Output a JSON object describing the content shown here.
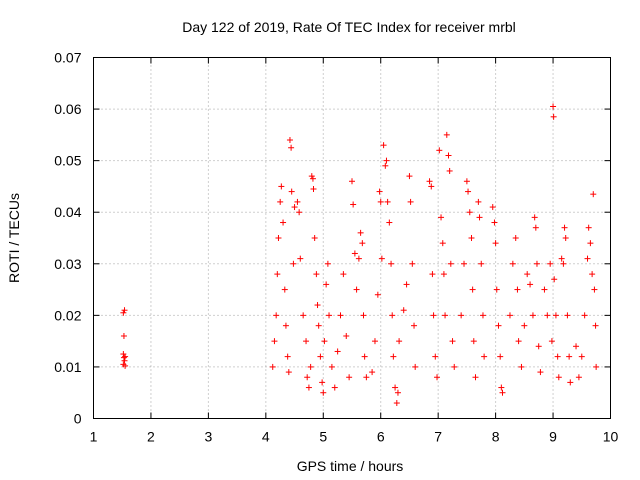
{
  "chart_data": {
    "type": "scatter",
    "title": "Day 122 of 2019, Rate Of TEC Index for receiver mrbl",
    "xlabel": "GPS time / hours",
    "ylabel": "ROTI / TECUs",
    "xlim": [
      1,
      10
    ],
    "ylim": [
      0,
      0.07
    ],
    "xticks": [
      1,
      2,
      3,
      4,
      5,
      6,
      7,
      8,
      9,
      10
    ],
    "xtick_labels": [
      "1",
      "2",
      "3",
      "4",
      "5",
      "6",
      "7",
      "8",
      "9",
      "10"
    ],
    "yticks": [
      0,
      0.01,
      0.02,
      0.03,
      0.04,
      0.05,
      0.06,
      0.07
    ],
    "ytick_labels": [
      "0",
      "0.01",
      "0.02",
      "0.03",
      "0.04",
      "0.05",
      "0.06",
      "0.07"
    ],
    "grid": true,
    "marker": "+",
    "color": "#ff0000",
    "series": [
      {
        "name": "ROTI",
        "points": [
          [
            1.52,
            0.0205
          ],
          [
            1.54,
            0.021
          ],
          [
            1.53,
            0.016
          ],
          [
            1.52,
            0.0125
          ],
          [
            1.55,
            0.012
          ],
          [
            1.53,
            0.0118
          ],
          [
            1.54,
            0.0112
          ],
          [
            1.52,
            0.0105
          ],
          [
            1.55,
            0.0102
          ],
          [
            4.12,
            0.01
          ],
          [
            4.15,
            0.015
          ],
          [
            4.18,
            0.02
          ],
          [
            4.2,
            0.028
          ],
          [
            4.22,
            0.035
          ],
          [
            4.25,
            0.042
          ],
          [
            4.27,
            0.045
          ],
          [
            4.3,
            0.038
          ],
          [
            4.33,
            0.025
          ],
          [
            4.35,
            0.018
          ],
          [
            4.38,
            0.012
          ],
          [
            4.4,
            0.009
          ],
          [
            4.42,
            0.054
          ],
          [
            4.44,
            0.0525
          ],
          [
            4.45,
            0.044
          ],
          [
            4.48,
            0.03
          ],
          [
            4.5,
            0.041
          ],
          [
            4.55,
            0.042
          ],
          [
            4.58,
            0.04
          ],
          [
            4.6,
            0.031
          ],
          [
            4.65,
            0.02
          ],
          [
            4.7,
            0.015
          ],
          [
            4.72,
            0.008
          ],
          [
            4.75,
            0.006
          ],
          [
            4.78,
            0.01
          ],
          [
            4.8,
            0.047
          ],
          [
            4.82,
            0.0465
          ],
          [
            4.83,
            0.0445
          ],
          [
            4.85,
            0.035
          ],
          [
            4.88,
            0.028
          ],
          [
            4.9,
            0.022
          ],
          [
            4.92,
            0.018
          ],
          [
            4.95,
            0.012
          ],
          [
            4.98,
            0.007
          ],
          [
            5.0,
            0.005
          ],
          [
            5.02,
            0.015
          ],
          [
            5.05,
            0.026
          ],
          [
            5.08,
            0.03
          ],
          [
            5.1,
            0.02
          ],
          [
            5.15,
            0.01
          ],
          [
            5.2,
            0.006
          ],
          [
            5.25,
            0.013
          ],
          [
            5.3,
            0.02
          ],
          [
            5.35,
            0.028
          ],
          [
            5.4,
            0.016
          ],
          [
            5.45,
            0.008
          ],
          [
            5.5,
            0.046
          ],
          [
            5.52,
            0.0415
          ],
          [
            5.55,
            0.032
          ],
          [
            5.58,
            0.025
          ],
          [
            5.62,
            0.031
          ],
          [
            5.65,
            0.036
          ],
          [
            5.68,
            0.034
          ],
          [
            5.7,
            0.02
          ],
          [
            5.72,
            0.012
          ],
          [
            5.75,
            0.008
          ],
          [
            5.85,
            0.009
          ],
          [
            5.9,
            0.015
          ],
          [
            5.95,
            0.024
          ],
          [
            5.98,
            0.044
          ],
          [
            6.0,
            0.042
          ],
          [
            6.02,
            0.031
          ],
          [
            6.05,
            0.053
          ],
          [
            6.08,
            0.049
          ],
          [
            6.1,
            0.05
          ],
          [
            6.12,
            0.042
          ],
          [
            6.15,
            0.038
          ],
          [
            6.18,
            0.03
          ],
          [
            6.2,
            0.02
          ],
          [
            6.22,
            0.012
          ],
          [
            6.25,
            0.006
          ],
          [
            6.28,
            0.003
          ],
          [
            6.3,
            0.005
          ],
          [
            6.32,
            0.015
          ],
          [
            6.4,
            0.021
          ],
          [
            6.45,
            0.026
          ],
          [
            6.5,
            0.047
          ],
          [
            6.52,
            0.042
          ],
          [
            6.55,
            0.03
          ],
          [
            6.58,
            0.018
          ],
          [
            6.6,
            0.01
          ],
          [
            6.85,
            0.046
          ],
          [
            6.88,
            0.045
          ],
          [
            6.9,
            0.028
          ],
          [
            6.92,
            0.02
          ],
          [
            6.95,
            0.012
          ],
          [
            6.98,
            0.008
          ],
          [
            7.02,
            0.052
          ],
          [
            7.05,
            0.039
          ],
          [
            7.08,
            0.034
          ],
          [
            7.1,
            0.028
          ],
          [
            7.12,
            0.02
          ],
          [
            7.15,
            0.055
          ],
          [
            7.18,
            0.051
          ],
          [
            7.2,
            0.048
          ],
          [
            7.22,
            0.03
          ],
          [
            7.25,
            0.015
          ],
          [
            7.28,
            0.01
          ],
          [
            7.4,
            0.02
          ],
          [
            7.45,
            0.03
          ],
          [
            7.5,
            0.046
          ],
          [
            7.52,
            0.044
          ],
          [
            7.55,
            0.04
          ],
          [
            7.58,
            0.035
          ],
          [
            7.6,
            0.025
          ],
          [
            7.62,
            0.015
          ],
          [
            7.65,
            0.008
          ],
          [
            7.7,
            0.042
          ],
          [
            7.72,
            0.039
          ],
          [
            7.75,
            0.03
          ],
          [
            7.78,
            0.02
          ],
          [
            7.8,
            0.012
          ],
          [
            7.95,
            0.041
          ],
          [
            7.98,
            0.038
          ],
          [
            8.0,
            0.034
          ],
          [
            8.02,
            0.025
          ],
          [
            8.05,
            0.018
          ],
          [
            8.08,
            0.012
          ],
          [
            8.1,
            0.006
          ],
          [
            8.12,
            0.005
          ],
          [
            8.25,
            0.02
          ],
          [
            8.3,
            0.03
          ],
          [
            8.35,
            0.035
          ],
          [
            8.38,
            0.025
          ],
          [
            8.4,
            0.015
          ],
          [
            8.45,
            0.01
          ],
          [
            8.5,
            0.018
          ],
          [
            8.55,
            0.028
          ],
          [
            8.6,
            0.026
          ],
          [
            8.65,
            0.02
          ],
          [
            8.68,
            0.039
          ],
          [
            8.7,
            0.037
          ],
          [
            8.72,
            0.03
          ],
          [
            8.75,
            0.014
          ],
          [
            8.78,
            0.009
          ],
          [
            8.85,
            0.025
          ],
          [
            8.9,
            0.02
          ],
          [
            8.95,
            0.03
          ],
          [
            8.98,
            0.015
          ],
          [
            9.0,
            0.0605
          ],
          [
            9.01,
            0.0585
          ],
          [
            9.02,
            0.027
          ],
          [
            9.05,
            0.02
          ],
          [
            9.08,
            0.012
          ],
          [
            9.1,
            0.008
          ],
          [
            9.15,
            0.031
          ],
          [
            9.18,
            0.03
          ],
          [
            9.2,
            0.037
          ],
          [
            9.22,
            0.035
          ],
          [
            9.25,
            0.02
          ],
          [
            9.28,
            0.012
          ],
          [
            9.3,
            0.007
          ],
          [
            9.4,
            0.014
          ],
          [
            9.45,
            0.008
          ],
          [
            9.5,
            0.012
          ],
          [
            9.55,
            0.02
          ],
          [
            9.6,
            0.031
          ],
          [
            9.62,
            0.037
          ],
          [
            9.65,
            0.034
          ],
          [
            9.68,
            0.028
          ],
          [
            9.7,
            0.0435
          ],
          [
            9.72,
            0.025
          ],
          [
            9.74,
            0.018
          ],
          [
            9.75,
            0.01
          ]
        ]
      }
    ]
  }
}
